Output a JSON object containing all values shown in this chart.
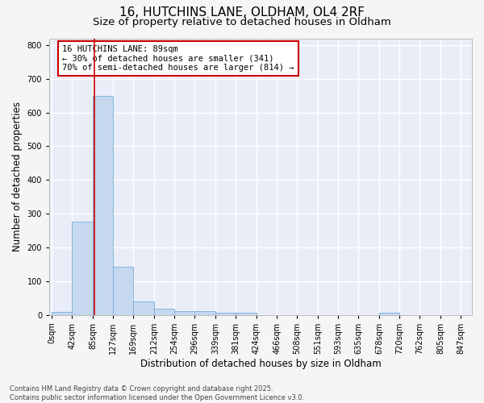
{
  "title_line1": "16, HUTCHINS LANE, OLDHAM, OL4 2RF",
  "title_line2": "Size of property relative to detached houses in Oldham",
  "bar_edges": [
    0,
    42,
    85,
    127,
    169,
    212,
    254,
    296,
    339,
    381,
    424,
    466,
    508,
    551,
    593,
    635,
    678,
    720,
    762,
    805,
    847
  ],
  "bar_heights": [
    8,
    275,
    648,
    143,
    40,
    18,
    12,
    10,
    7,
    5,
    0,
    0,
    0,
    0,
    0,
    0,
    5,
    0,
    0,
    0,
    0
  ],
  "bar_color": "#c5d8f0",
  "bar_edge_color": "#7aaed4",
  "bg_color": "#e8edf8",
  "grid_color": "#ffffff",
  "fig_bg_color": "#f5f5f5",
  "ylabel": "Number of detached properties",
  "xlabel": "Distribution of detached houses by size in Oldham",
  "ylim": [
    0,
    820
  ],
  "yticks": [
    0,
    100,
    200,
    300,
    400,
    500,
    600,
    700,
    800
  ],
  "property_size": 89,
  "vline_color": "#cc0000",
  "annotation_text": "16 HUTCHINS LANE: 89sqm\n← 30% of detached houses are smaller (341)\n70% of semi-detached houses are larger (814) →",
  "annotation_box_color": "#cc0000",
  "footnote": "Contains HM Land Registry data © Crown copyright and database right 2025.\nContains public sector information licensed under the Open Government Licence v3.0.",
  "title_fontsize": 11,
  "subtitle_fontsize": 9.5,
  "label_fontsize": 8.5,
  "tick_fontsize": 7,
  "annot_fontsize": 7.5,
  "footnote_fontsize": 6
}
